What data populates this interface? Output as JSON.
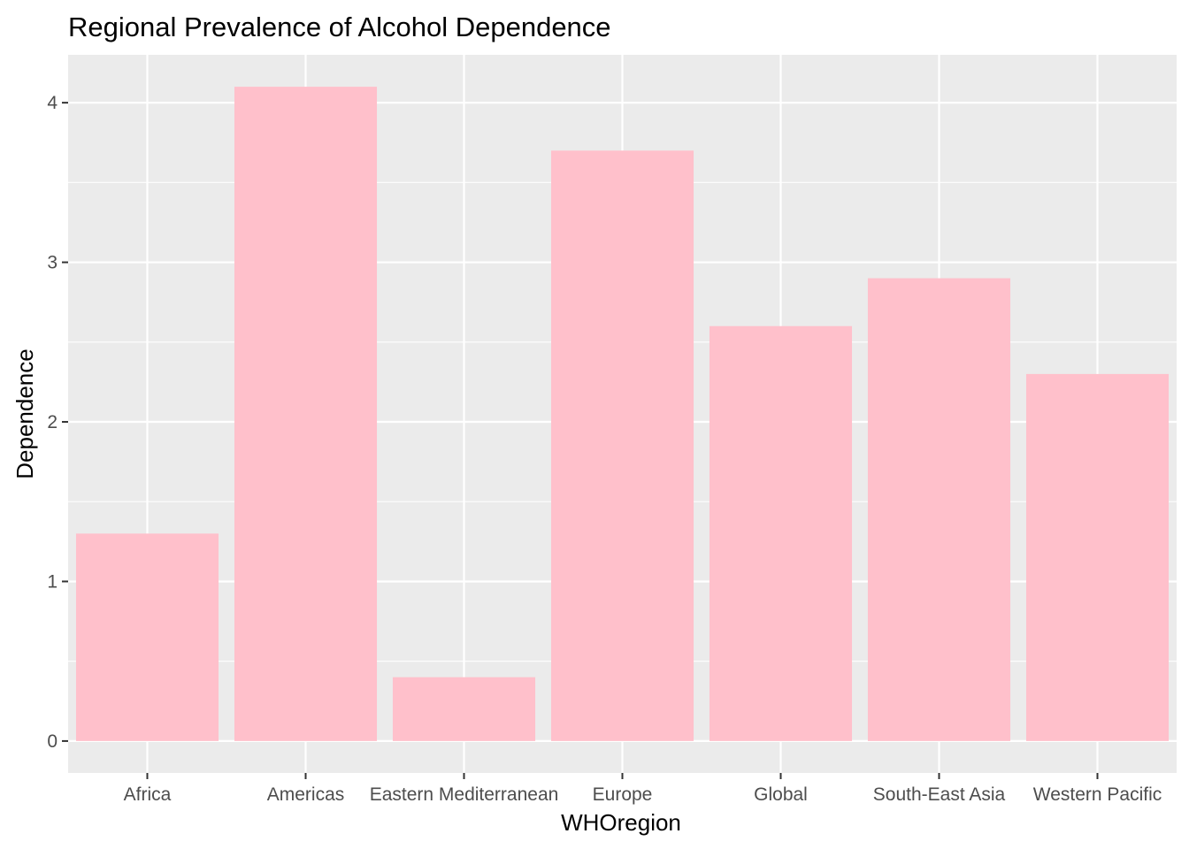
{
  "chart_data": {
    "type": "bar",
    "title": "Regional Prevalence of Alcohol Dependence",
    "xlabel": "WHOregion",
    "ylabel": "Dependence",
    "categories": [
      "Africa",
      "Americas",
      "Eastern Mediterranean",
      "Europe",
      "Global",
      "South-East Asia",
      "Western Pacific"
    ],
    "values": [
      1.3,
      4.1,
      0.4,
      3.7,
      2.6,
      2.9,
      2.3
    ],
    "ylim": [
      -0.2,
      4.3
    ],
    "yticks": [
      0,
      1,
      2,
      3,
      4
    ],
    "grid": true,
    "colors": {
      "bar": "#FFC0CB",
      "panel_background": "#EBEBEB",
      "grid_line": "#FFFFFF",
      "tick_text": "#4D4D4D",
      "tick_mark": "#333333"
    }
  }
}
